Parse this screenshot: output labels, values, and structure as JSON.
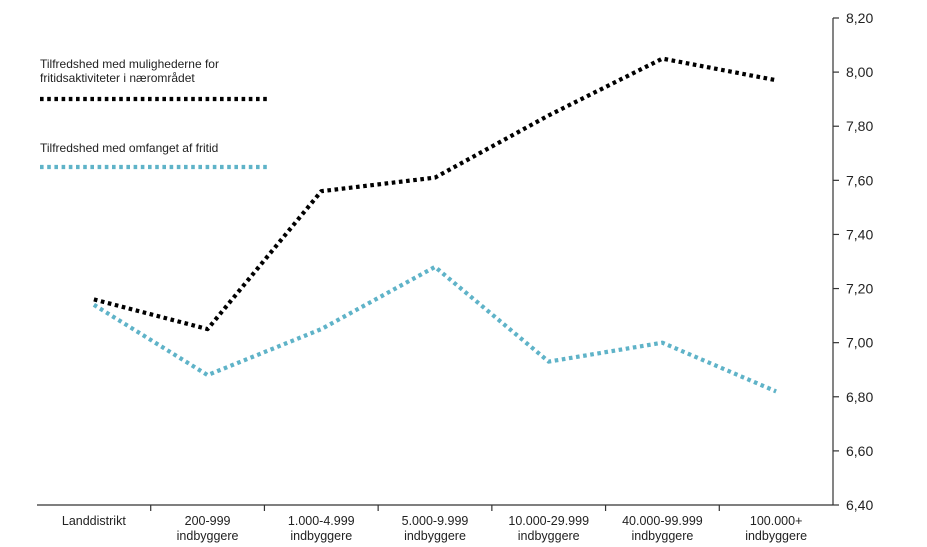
{
  "chart_data": {
    "type": "line",
    "title": "",
    "xlabel": "",
    "ylabel": "",
    "categories": [
      [
        "Landdistrikt"
      ],
      [
        "200-999",
        "indbyggere"
      ],
      [
        "1.000-4.999",
        "indbyggere"
      ],
      [
        "5.000-9.999",
        "indbyggere"
      ],
      [
        "10.000-29.999",
        "indbyggere"
      ],
      [
        "40.000-99.999",
        "indbyggere"
      ],
      [
        "100.000+",
        "indbyggere"
      ]
    ],
    "series": [
      {
        "name": [
          "Tilfredshed med mulighederne for",
          "fritidsaktiviteter i nærområdet"
        ],
        "values": [
          7.16,
          7.05,
          7.56,
          7.61,
          7.84,
          8.05,
          7.97
        ],
        "color": "#000000"
      },
      {
        "name": [
          "Tilfredshed med omfanget af fritid"
        ],
        "values": [
          7.14,
          6.88,
          7.05,
          7.28,
          6.93,
          7.0,
          6.82
        ],
        "color": "#5fb3c8"
      }
    ],
    "ylim": [
      6.4,
      8.2
    ],
    "yticks": [
      "6,40",
      "6,60",
      "6,80",
      "7,00",
      "7,20",
      "7,40",
      "7,60",
      "7,80",
      "8,00",
      "8,20"
    ],
    "ytick_values": [
      6.4,
      6.6,
      6.8,
      7.0,
      7.2,
      7.4,
      7.6,
      7.8,
      8.0,
      8.2
    ],
    "y_axis_side": "right",
    "legend_position": "top-left",
    "grid": false
  }
}
